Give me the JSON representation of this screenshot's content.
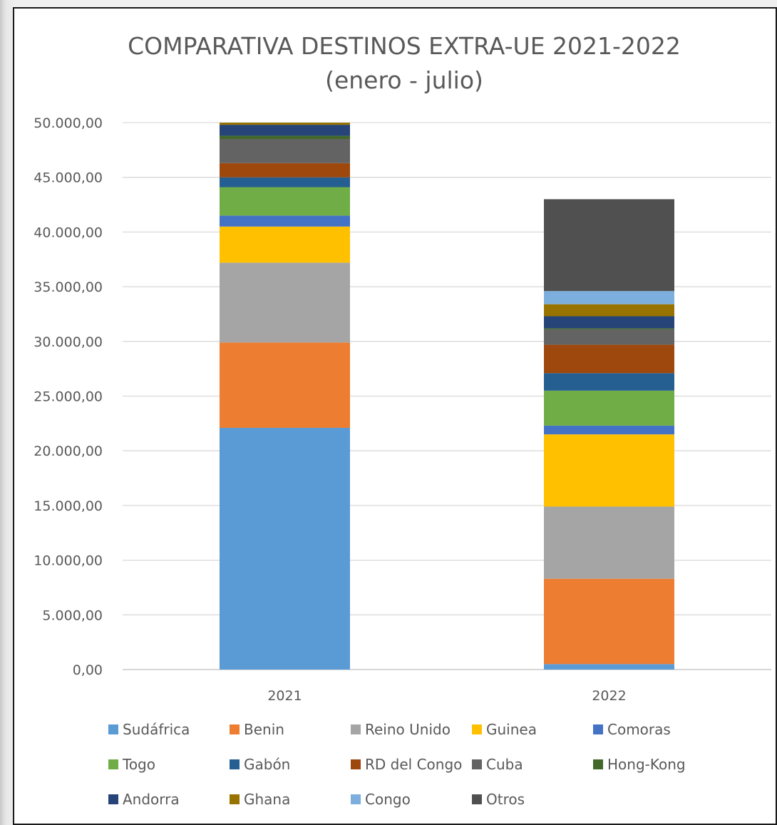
{
  "chart_data": {
    "type": "bar",
    "stacked": true,
    "title": "COMPARATIVA DESTINOS EXTRA-UE 2021-2022",
    "subtitle": "(enero - julio)",
    "categories": [
      "2021",
      "2022"
    ],
    "ylim": [
      0,
      50000
    ],
    "y_ticks": [
      "0,00",
      "5.000,00",
      "10.000,00",
      "15.000,00",
      "20.000,00",
      "25.000,00",
      "30.000,00",
      "35.000,00",
      "40.000,00",
      "45.000,00",
      "50.000,00"
    ],
    "grid": true,
    "legend_position": "bottom",
    "series": [
      {
        "name": "Sudáfrica",
        "color": "#5b9bd5",
        "values": [
          22100,
          500
        ]
      },
      {
        "name": "Benin",
        "color": "#ed7d31",
        "values": [
          7800,
          7800
        ]
      },
      {
        "name": "Reino Unido",
        "color": "#a5a5a5",
        "values": [
          7300,
          6600
        ]
      },
      {
        "name": "Guinea",
        "color": "#ffc000",
        "values": [
          3300,
          6600
        ]
      },
      {
        "name": "Comoras",
        "color": "#4472c4",
        "values": [
          1000,
          800
        ]
      },
      {
        "name": "Togo",
        "color": "#70ad47",
        "values": [
          2600,
          3200
        ]
      },
      {
        "name": "Gabón",
        "color": "#255e91",
        "values": [
          900,
          1600
        ]
      },
      {
        "name": "RD del Congo",
        "color": "#9e480e",
        "values": [
          1300,
          2600
        ]
      },
      {
        "name": "Cuba",
        "color": "#636363",
        "values": [
          2200,
          1400
        ]
      },
      {
        "name": "Hong-Kong",
        "color": "#43682b",
        "values": [
          300,
          100
        ]
      },
      {
        "name": "Andorra",
        "color": "#264478",
        "values": [
          1000,
          1100
        ]
      },
      {
        "name": "Ghana",
        "color": "#997300",
        "values": [
          200,
          1100
        ]
      },
      {
        "name": "Congo",
        "color": "#7cafdd",
        "values": [
          0,
          1200
        ]
      },
      {
        "name": "Otros",
        "color": "#505050",
        "values": [
          0,
          8400
        ]
      }
    ]
  }
}
